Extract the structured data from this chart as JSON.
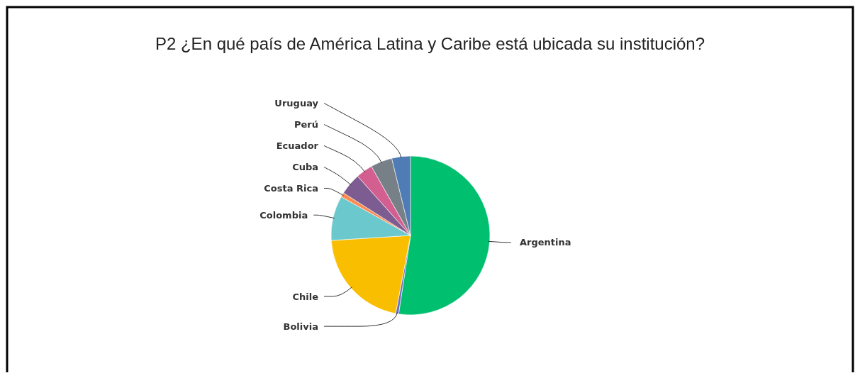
{
  "chart_data": {
    "type": "pie",
    "title": "P2 ¿En qué país de América Latina y Caribe está ubicada su institución?",
    "categories": [
      "Argentina",
      "Bolivia",
      "Chile",
      "Colombia",
      "Costa Rica",
      "Cuba",
      "Ecuador",
      "Perú",
      "Uruguay"
    ],
    "values": [
      52.4,
      0.6,
      21.0,
      9.1,
      0.9,
      4.4,
      3.4,
      4.4,
      3.8
    ],
    "colors": [
      "#00bf6f",
      "#6d6fc4",
      "#f9be00",
      "#6bc8cd",
      "#ff8b4f",
      "#7d5c91",
      "#d25f90",
      "#768086",
      "#507cb6"
    ]
  }
}
